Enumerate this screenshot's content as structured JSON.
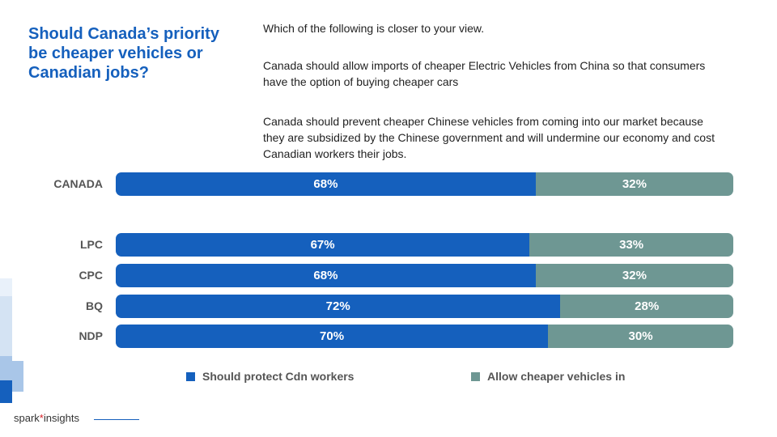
{
  "title": "Should Canada’s priority be cheaper vehicles or Canadian jobs?",
  "question": "Which of the following is closer to your view.",
  "option_cheaper": "Canada should allow imports of cheaper Electric Vehicles from China so that consumers have the option of buying cheaper cars",
  "option_protect": "Canada should prevent cheaper Chinese vehicles from coming into our market because they are subsidized by the Chinese government and will undermine our economy and cost Canadian workers their jobs.",
  "chart_data": {
    "type": "bar",
    "orientation": "horizontal",
    "stacked": true,
    "percent_scale": true,
    "categories": [
      "CANADA",
      "LPC",
      "CPC",
      "BQ",
      "NDP"
    ],
    "series": [
      {
        "name": "Should protect Cdn workers",
        "color": "#1560bd",
        "values": [
          68,
          67,
          68,
          72,
          70
        ]
      },
      {
        "name": "Allow cheaper vehicles in",
        "color": "#6e9793",
        "values": [
          32,
          33,
          32,
          28,
          30
        ]
      }
    ],
    "value_format": "{v}%",
    "legend_position": "bottom"
  },
  "logo": {
    "brand": "spark",
    "mark": "*",
    "suffix": " insights"
  }
}
